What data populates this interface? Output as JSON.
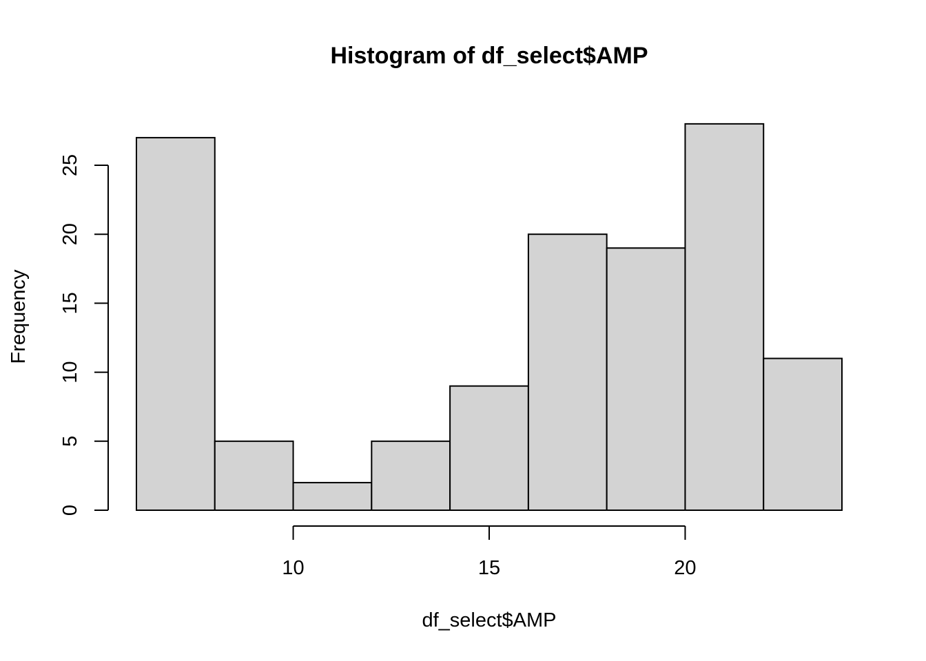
{
  "chart_data": {
    "type": "bar",
    "title": "Histogram of df_select$AMP",
    "xlabel": "df_select$AMP",
    "ylabel": "Frequency",
    "bins": [
      {
        "x0": 6,
        "x1": 8,
        "count": 27
      },
      {
        "x0": 8,
        "x1": 10,
        "count": 5
      },
      {
        "x0": 10,
        "x1": 12,
        "count": 2
      },
      {
        "x0": 12,
        "x1": 14,
        "count": 5
      },
      {
        "x0": 14,
        "x1": 16,
        "count": 9
      },
      {
        "x0": 16,
        "x1": 18,
        "count": 20
      },
      {
        "x0": 18,
        "x1": 20,
        "count": 19
      },
      {
        "x0": 20,
        "x1": 22,
        "count": 28
      },
      {
        "x0": 22,
        "x1": 24,
        "count": 11
      }
    ],
    "xlim": [
      6,
      24
    ],
    "ylim": [
      0,
      28
    ],
    "x_ticks": [
      10,
      15,
      20
    ],
    "y_ticks": [
      0,
      5,
      10,
      15,
      20,
      25
    ],
    "bar_color": "#d3d3d3",
    "grid": false,
    "legend": "none"
  }
}
